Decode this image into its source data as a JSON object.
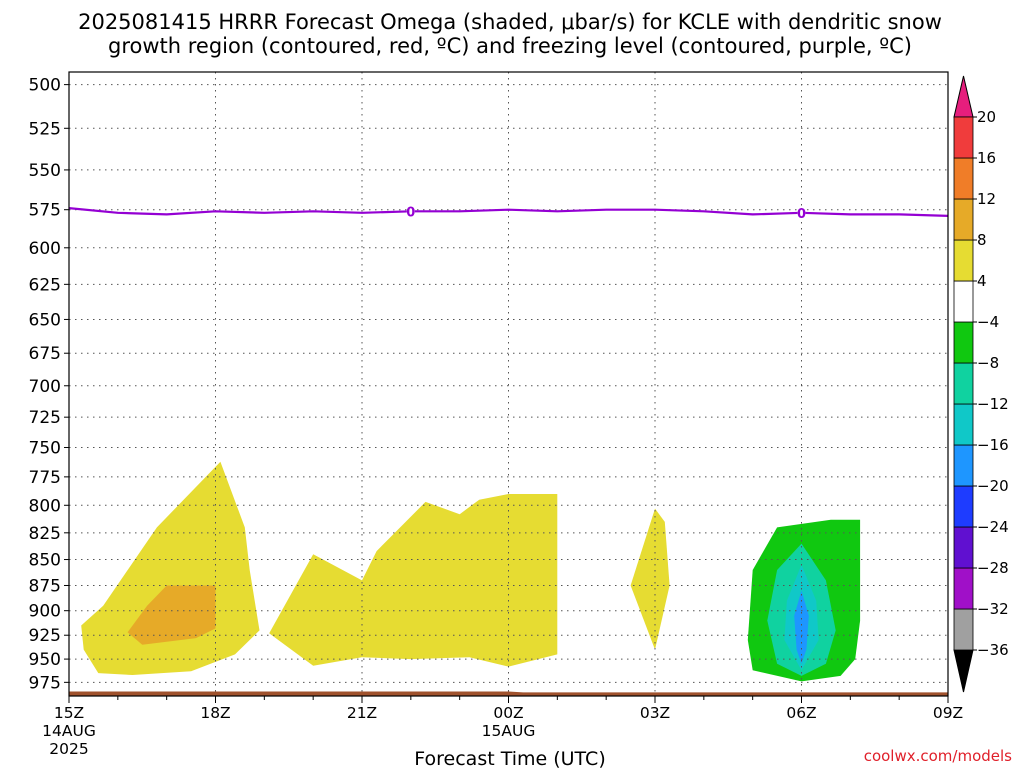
{
  "title_line1": "2025081415 HRRR Forecast Omega (shaded, μbar/s) for KCLE with dendritic snow",
  "title_line2": "growth region (contoured, red, ºC) and freezing level (contoured, purple, ºC)",
  "credit": "coolwx.com/models",
  "chart_data": {
    "type": "time-height cross section",
    "xlabel": "Forecast Time (UTC)",
    "ylabel": "",
    "x_ticks": [
      {
        "hour": 0,
        "label": "15Z",
        "sub1": "14AUG",
        "sub2": "2025"
      },
      {
        "hour": 3,
        "label": "18Z",
        "sub1": "",
        "sub2": ""
      },
      {
        "hour": 6,
        "label": "21Z",
        "sub1": "",
        "sub2": ""
      },
      {
        "hour": 9,
        "label": "00Z",
        "sub1": "15AUG",
        "sub2": ""
      },
      {
        "hour": 12,
        "label": "03Z",
        "sub1": "",
        "sub2": ""
      },
      {
        "hour": 15,
        "label": "06Z",
        "sub1": "",
        "sub2": ""
      },
      {
        "hour": 18,
        "label": "09Z",
        "sub1": "",
        "sub2": ""
      }
    ],
    "xlim_hours": [
      0,
      18
    ],
    "y_ticks": [
      500,
      525,
      550,
      575,
      600,
      625,
      650,
      675,
      700,
      725,
      750,
      775,
      800,
      825,
      850,
      875,
      900,
      925,
      950,
      975
    ],
    "ylim_hpa": [
      990,
      493
    ],
    "y_scale": "log-pressure (inverted)",
    "grid": true,
    "colorbar": {
      "levels": [
        -36,
        -32,
        -28,
        -24,
        -20,
        -16,
        -12,
        -8,
        -4,
        4,
        8,
        12,
        16,
        20
      ],
      "colors": [
        "#000000",
        "#a0a0a0",
        "#a010c8",
        "#6010d0",
        "#1e3cff",
        "#1e96ff",
        "#10c8c8",
        "#10d2a0",
        "#10c810",
        "#ffffff",
        "#e6dc32",
        "#e6aa28",
        "#f07d28",
        "#f03c3c",
        "#e61e7d"
      ]
    },
    "omega_regions": [
      {
        "value_class": "4 to 8",
        "color": "#e6dc32",
        "points": [
          [
            0.6,
            965
          ],
          [
            0.3,
            940
          ],
          [
            0.25,
            915
          ],
          [
            0.7,
            895
          ],
          [
            1.8,
            820
          ],
          [
            3.1,
            762
          ],
          [
            3.6,
            820
          ],
          [
            3.7,
            860
          ],
          [
            3.9,
            920
          ],
          [
            3.4,
            945
          ],
          [
            2.5,
            963
          ],
          [
            1.3,
            967
          ]
        ]
      },
      {
        "value_class": "4 to 8",
        "color": "#e6dc32",
        "points": [
          [
            4.1,
            923
          ],
          [
            5.0,
            845
          ],
          [
            6.0,
            870
          ],
          [
            6.3,
            842
          ],
          [
            7.3,
            797
          ],
          [
            8.0,
            808
          ],
          [
            8.4,
            795
          ],
          [
            9.0,
            790
          ],
          [
            10.0,
            790
          ],
          [
            10.0,
            945
          ],
          [
            9.0,
            958
          ],
          [
            8.2,
            948
          ],
          [
            7.0,
            950
          ],
          [
            6.0,
            948
          ],
          [
            5.0,
            957
          ]
        ]
      },
      {
        "value_class": "4 to 8",
        "color": "#e6dc32",
        "points": [
          [
            12.0,
            803
          ],
          [
            12.2,
            815
          ],
          [
            12.3,
            875
          ],
          [
            12.0,
            940
          ],
          [
            11.5,
            875
          ]
        ]
      },
      {
        "value_class": "8 to 12",
        "color": "#e6aa28",
        "points": [
          [
            2.0,
            875
          ],
          [
            3.0,
            875
          ],
          [
            3.0,
            918
          ],
          [
            2.6,
            928
          ],
          [
            1.5,
            935
          ],
          [
            1.2,
            922
          ],
          [
            1.6,
            895
          ]
        ]
      },
      {
        "value_class": "-8 to -4",
        "color": "#10c810",
        "points": [
          [
            15.6,
            813
          ],
          [
            16.2,
            813
          ],
          [
            16.2,
            910
          ],
          [
            16.1,
            950
          ],
          [
            15.8,
            968
          ],
          [
            15.0,
            974
          ],
          [
            14.0,
            962
          ],
          [
            13.9,
            930
          ],
          [
            14.0,
            860
          ],
          [
            14.5,
            820
          ]
        ]
      },
      {
        "value_class": "-12 to -8",
        "color": "#10d2a0",
        "points": [
          [
            15.0,
            835
          ],
          [
            15.5,
            870
          ],
          [
            15.7,
            920
          ],
          [
            15.5,
            955
          ],
          [
            15.0,
            968
          ],
          [
            14.5,
            955
          ],
          [
            14.3,
            910
          ],
          [
            14.5,
            860
          ]
        ]
      },
      {
        "value_class": "-16 to -12",
        "color": "#10c8c8",
        "points": [
          [
            15.0,
            855
          ],
          [
            15.3,
            890
          ],
          [
            15.35,
            930
          ],
          [
            15.0,
            962
          ],
          [
            14.65,
            930
          ],
          [
            14.7,
            890
          ]
        ]
      },
      {
        "value_class": "-20 to -16",
        "color": "#1e96ff",
        "points": [
          [
            15.0,
            880
          ],
          [
            15.15,
            905
          ],
          [
            15.1,
            940
          ],
          [
            15.0,
            955
          ],
          [
            14.9,
            940
          ],
          [
            14.85,
            905
          ]
        ]
      }
    ],
    "freezing_level": {
      "label": "0",
      "label_hours": [
        7,
        15
      ],
      "points": [
        [
          0,
          574
        ],
        [
          1,
          577
        ],
        [
          2,
          578
        ],
        [
          3,
          576
        ],
        [
          4,
          577
        ],
        [
          5,
          576
        ],
        [
          6,
          577
        ],
        [
          7,
          576
        ],
        [
          8,
          576
        ],
        [
          9,
          575
        ],
        [
          10,
          576
        ],
        [
          11,
          575
        ],
        [
          12,
          575
        ],
        [
          13,
          576
        ],
        [
          14,
          578
        ],
        [
          15,
          577
        ],
        [
          16,
          578
        ],
        [
          17,
          578
        ],
        [
          18,
          579
        ]
      ]
    },
    "ground_level_hpa": [
      [
        0,
        985
      ],
      [
        9,
        985
      ],
      [
        9.3,
        986
      ],
      [
        18,
        986
      ]
    ]
  }
}
